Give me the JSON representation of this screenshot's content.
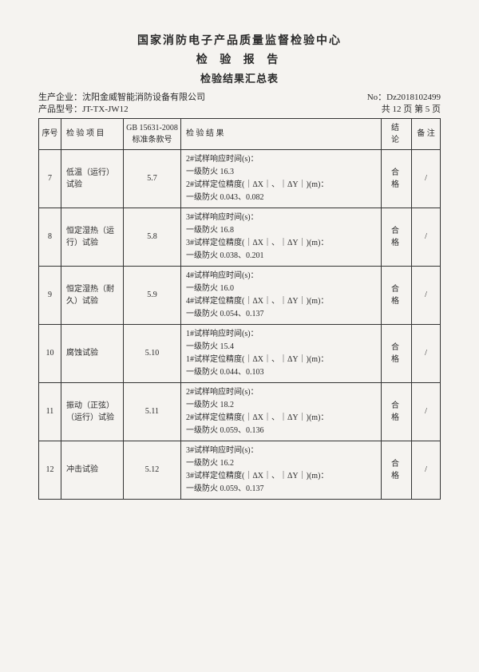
{
  "header": {
    "line1": "国家消防电子产品质量监督检验中心",
    "line2": "检 验 报 告",
    "line3": "检验结果汇总表"
  },
  "meta": {
    "company_label": "生产企业：",
    "company": "沈阳金威智能消防设备有限公司",
    "model_label": "产品型号：",
    "model": "JT-TX-JW12",
    "report_no_label": "No：",
    "report_no": "Dz2018102499",
    "page_info": "共 12 页  第 5 页"
  },
  "columns": {
    "num": "序号",
    "item": "检 验 项 目",
    "std": "GB 15631-2008\n标准条款号",
    "result": "检 验 结 果",
    "conc": "结 论",
    "note": "备 注"
  },
  "rows": [
    {
      "num": "7",
      "item": "低温（运行）试验",
      "std": "5.7",
      "result": "2#试样响应时间(s)：\n一级防火 16.3\n2#试样定位精度(｜ΔX｜、｜ΔY｜)(m)：\n一级防火  0.043、0.082",
      "conc": "合 格",
      "note": "/"
    },
    {
      "num": "8",
      "item": "恒定湿热（运行）试验",
      "std": "5.8",
      "result": "3#试样响应时间(s)：\n一级防火 16.8\n3#试样定位精度(｜ΔX｜、｜ΔY｜)(m)：\n一级防火  0.038、0.201",
      "conc": "合 格",
      "note": "/"
    },
    {
      "num": "9",
      "item": "恒定湿热（耐久）试验",
      "std": "5.9",
      "result": "4#试样响应时间(s)：\n一级防火 16.0\n4#试样定位精度(｜ΔX｜、｜ΔY｜)(m)：\n一级防火  0.054、0.137",
      "conc": "合 格",
      "note": "/"
    },
    {
      "num": "10",
      "item": "腐蚀试验",
      "std": "5.10",
      "result": "1#试样响应时间(s)：\n一级防火 15.4\n1#试样定位精度(｜ΔX｜、｜ΔY｜)(m)：\n一级防火  0.044、0.103",
      "conc": "合 格",
      "note": "/"
    },
    {
      "num": "11",
      "item": "振动（正弦）（运行）试验",
      "std": "5.11",
      "result": "2#试样响应时间(s)：\n一级防火 18.2\n2#试样定位精度(｜ΔX｜、｜ΔY｜)(m)：\n一级防火  0.059、0.136",
      "conc": "合 格",
      "note": "/"
    },
    {
      "num": "12",
      "item": "冲击试验",
      "std": "5.12",
      "result": "3#试样响应时间(s)：\n一级防火 16.2\n3#试样定位精度(｜ΔX｜、｜ΔY｜)(m)：\n一级防火  0.059、0.137",
      "conc": "合 格",
      "note": "/"
    }
  ]
}
